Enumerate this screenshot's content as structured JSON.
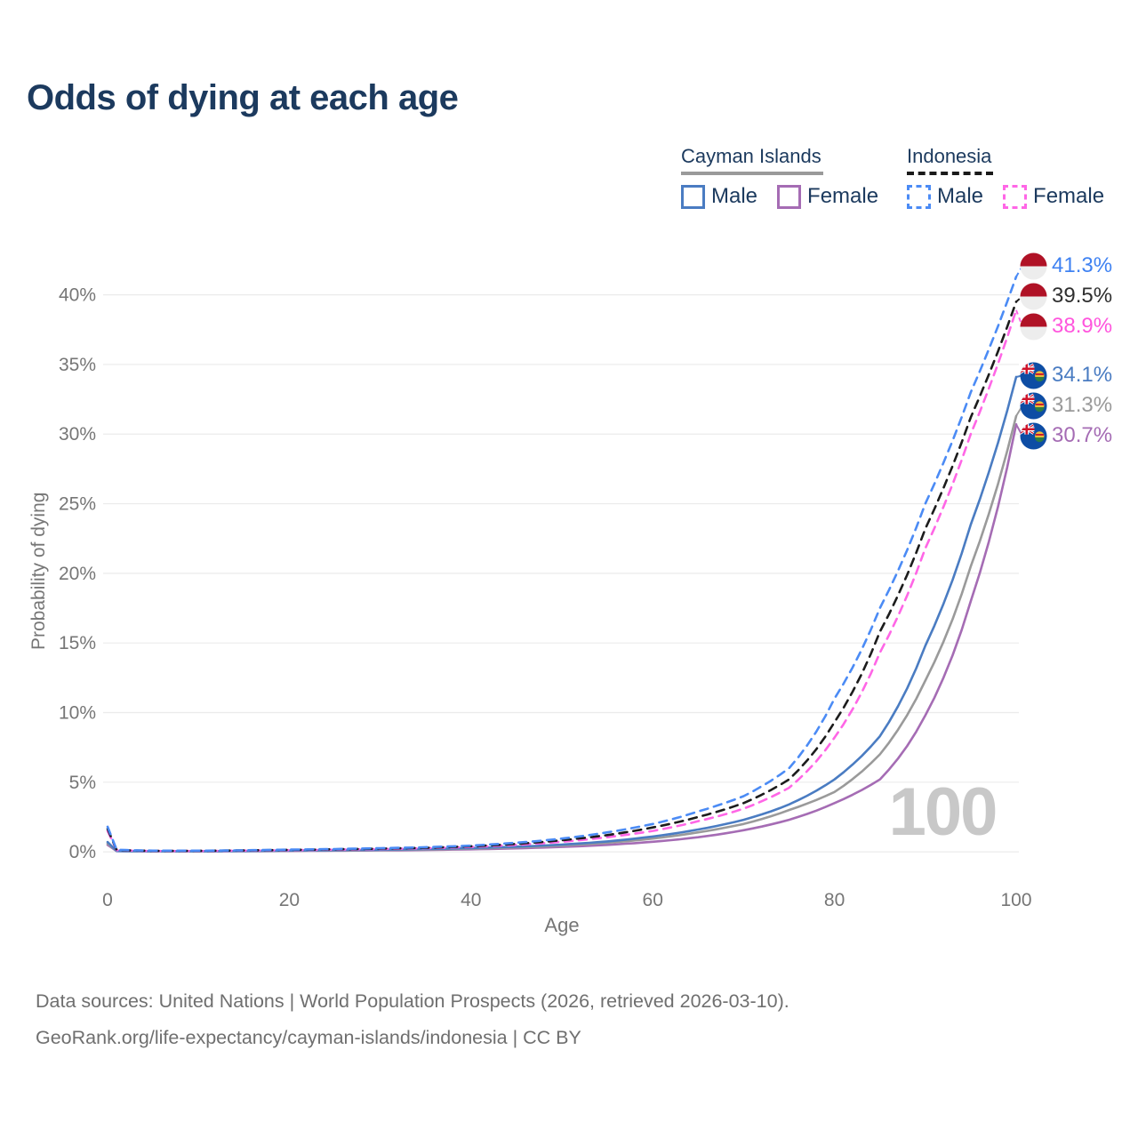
{
  "title": "Odds of dying at each age",
  "legend": {
    "groups": [
      {
        "name": "Cayman Islands",
        "style": "solid",
        "underline_color": "#9a9a9a",
        "items": [
          {
            "label": "Male",
            "color": "#4a7cc2"
          },
          {
            "label": "Female",
            "color": "#a56cb4"
          }
        ]
      },
      {
        "name": "Indonesia",
        "style": "dashed",
        "underline_color": "#1a1a1a",
        "items": [
          {
            "label": "Male",
            "color": "#4b8bf5"
          },
          {
            "label": "Female",
            "color": "#ff66e6"
          }
        ]
      }
    ]
  },
  "chart_data": {
    "type": "line",
    "title": "Odds of dying at each age",
    "xlabel": "Age",
    "ylabel": "Probability of dying",
    "xlim": [
      0,
      100
    ],
    "ylim_percent": [
      0,
      42
    ],
    "grid": "horizontal",
    "legend_position": "top-right",
    "xticks": [
      "0",
      "20",
      "40",
      "60",
      "80",
      "100"
    ],
    "yticks": [
      "0%",
      "5%",
      "10%",
      "15%",
      "20%",
      "25%",
      "30%",
      "35%",
      "40%"
    ],
    "age_marker": "100",
    "x": [
      0,
      1,
      5,
      10,
      15,
      20,
      25,
      30,
      35,
      40,
      45,
      50,
      55,
      60,
      65,
      70,
      75,
      80,
      85,
      90,
      95,
      100
    ],
    "series": [
      {
        "name": "Indonesia Male",
        "country": "indonesia",
        "sex": "male",
        "color": "#4b8bf5",
        "label_color": "#3f82f2",
        "dash": true,
        "end_label": "41.3%",
        "values_percent": [
          1.8,
          0.15,
          0.08,
          0.08,
          0.11,
          0.16,
          0.2,
          0.26,
          0.33,
          0.45,
          0.65,
          0.95,
          1.4,
          2.0,
          2.9,
          4.0,
          6.0,
          11.0,
          17.5,
          25.0,
          33.0,
          41.3
        ]
      },
      {
        "name": "Indonesia Both sexes",
        "country": "indonesia",
        "sex": "both",
        "color": "#1c1c1c",
        "label_color": "#2f2f2f",
        "dash": true,
        "end_label": "39.5%",
        "values_percent": [
          1.65,
          0.13,
          0.07,
          0.07,
          0.1,
          0.14,
          0.18,
          0.23,
          0.29,
          0.4,
          0.57,
          0.83,
          1.2,
          1.75,
          2.5,
          3.5,
          5.2,
          9.3,
          15.8,
          23.2,
          31.2,
          39.5
        ]
      },
      {
        "name": "Indonesia Female",
        "country": "indonesia",
        "sex": "female",
        "color": "#ff66e6",
        "label_color": "#ff55dd",
        "dash": true,
        "end_label": "38.9%",
        "values_percent": [
          1.5,
          0.12,
          0.06,
          0.06,
          0.09,
          0.12,
          0.16,
          0.2,
          0.26,
          0.35,
          0.5,
          0.72,
          1.05,
          1.5,
          2.2,
          3.1,
          4.6,
          8.2,
          14.3,
          21.8,
          30.0,
          38.9
        ]
      },
      {
        "name": "Cayman Islands Male",
        "country": "cayman-islands",
        "sex": "male",
        "color": "#4a7cc2",
        "label_color": "#4a7cc2",
        "dash": false,
        "end_label": "34.1%",
        "values_percent": [
          0.7,
          0.06,
          0.04,
          0.04,
          0.06,
          0.09,
          0.12,
          0.15,
          0.2,
          0.27,
          0.37,
          0.52,
          0.75,
          1.1,
          1.6,
          2.3,
          3.4,
          5.2,
          8.3,
          14.8,
          23.5,
          34.1
        ]
      },
      {
        "name": "Cayman Islands Both sexes",
        "country": "cayman-islands",
        "sex": "both",
        "color": "#9a9a9a",
        "label_color": "#9a9a9a",
        "dash": false,
        "end_label": "31.3%",
        "values_percent": [
          0.6,
          0.055,
          0.035,
          0.035,
          0.05,
          0.08,
          0.1,
          0.13,
          0.17,
          0.23,
          0.32,
          0.45,
          0.65,
          0.95,
          1.4,
          2.0,
          3.0,
          4.3,
          7.0,
          12.3,
          20.5,
          31.3
        ]
      },
      {
        "name": "Cayman Islands Female",
        "country": "cayman-islands",
        "sex": "female",
        "color": "#a56cb4",
        "label_color": "#a56cb4",
        "dash": false,
        "end_label": "30.7%",
        "values_percent": [
          0.5,
          0.05,
          0.03,
          0.03,
          0.04,
          0.06,
          0.08,
          0.1,
          0.13,
          0.18,
          0.25,
          0.35,
          0.5,
          0.72,
          1.05,
          1.55,
          2.3,
          3.5,
          5.2,
          9.8,
          18.0,
          30.7
        ]
      }
    ]
  },
  "flags": {
    "indonesia": {
      "red": "#b01226",
      "white": "#ededed"
    },
    "cayman-islands": {
      "blue": "#0e4da4",
      "cross_red": "#cf142b",
      "white": "#ffffff",
      "crest_gold": "#e9bb3a",
      "crest_green": "#2e7d43"
    }
  },
  "footer": {
    "line1": "Data sources: United Nations | World Population Prospects (2026, retrieved 2026-03-10).",
    "line2": "GeoRank.org/life-expectancy/cayman-islands/indonesia | CC BY"
  }
}
